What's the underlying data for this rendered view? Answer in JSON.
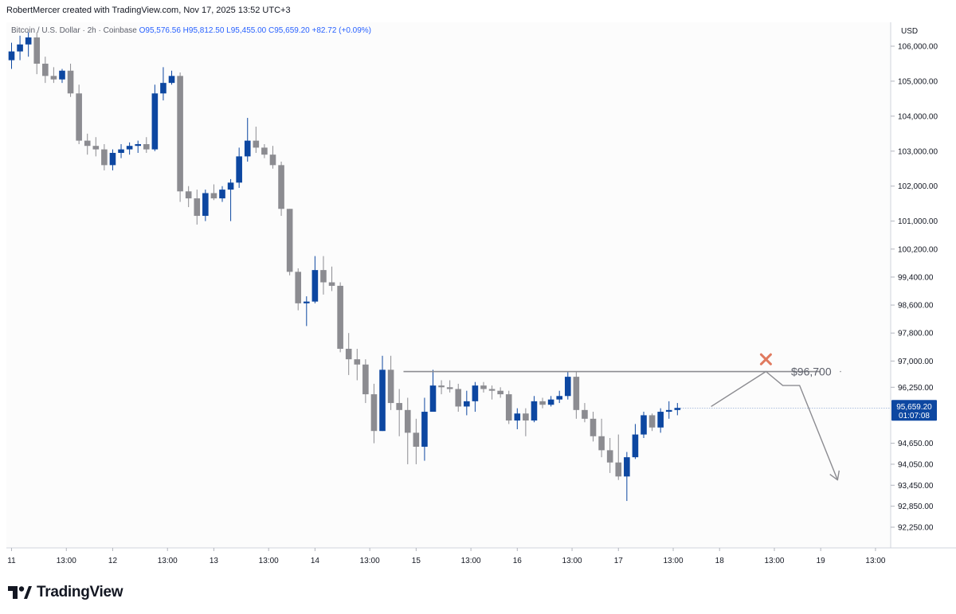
{
  "header": {
    "credit": "RobertMercer created with TradingView.com, Nov 17, 2025 13:52 UTC+3",
    "symbol": "Bitcoin / U.S. Dollar · 2h · Coinbase",
    "open": "O95,576.56",
    "high": "H95,812.50",
    "low": "L95,455.00",
    "close": "C95,659.20",
    "change": "+82.72 (+0.09%)"
  },
  "axis": {
    "currency": "USD"
  },
  "footer": {
    "brand": "TradingView"
  },
  "colors": {
    "up": "#0d47a1",
    "down": "#8c8c91",
    "projection": "#8c8c91",
    "cross": "#e07a5f",
    "price_tag": "#0d47a1"
  },
  "chart_data": {
    "type": "candlestick",
    "title": "Bitcoin / U.S. Dollar · 2h · Coinbase",
    "y_axis": {
      "ticks": [
        {
          "label": "106,000.00",
          "value": 106000
        },
        {
          "label": "105,000.00",
          "value": 105000
        },
        {
          "label": "104,000.00",
          "value": 104000
        },
        {
          "label": "103,000.00",
          "value": 103000
        },
        {
          "label": "102,000.00",
          "value": 102000
        },
        {
          "label": "101,000.00",
          "value": 101000
        },
        {
          "label": "100,200.00",
          "value": 100200
        },
        {
          "label": "99,400.00",
          "value": 99400
        },
        {
          "label": "98,600.00",
          "value": 98600
        },
        {
          "label": "97,800.00",
          "value": 97800
        },
        {
          "label": "97,000.00",
          "value": 97000
        },
        {
          "label": "96,250.00",
          "value": 96250
        },
        {
          "label": "94,650.00",
          "value": 94650
        },
        {
          "label": "94,050.00",
          "value": 94050
        },
        {
          "label": "93,450.00",
          "value": 93450
        },
        {
          "label": "92,850.00",
          "value": 92850
        },
        {
          "label": "92,250.00",
          "value": 92250
        }
      ]
    },
    "x_axis": {
      "ticks": [
        {
          "label": "11",
          "bar": 0
        },
        {
          "label": "13:00",
          "bar": 6.5
        },
        {
          "label": "12",
          "bar": 12
        },
        {
          "label": "13:00",
          "bar": 18.5
        },
        {
          "label": "13",
          "bar": 24
        },
        {
          "label": "13:00",
          "bar": 30.5
        },
        {
          "label": "14",
          "bar": 36
        },
        {
          "label": "13:00",
          "bar": 42.5
        },
        {
          "label": "15",
          "bar": 48
        },
        {
          "label": "13:00",
          "bar": 54.5
        },
        {
          "label": "16",
          "bar": 60
        },
        {
          "label": "13:00",
          "bar": 66.5
        },
        {
          "label": "17",
          "bar": 72
        },
        {
          "label": "13:00",
          "bar": 78.5
        },
        {
          "label": "18",
          "bar": 84
        },
        {
          "label": "13:00",
          "bar": 90.5
        },
        {
          "label": "19",
          "bar": 96
        },
        {
          "label": "13:00",
          "bar": 102.5
        }
      ]
    },
    "candles": [
      {
        "o": 105600,
        "h": 106100,
        "l": 105350,
        "c": 105850
      },
      {
        "o": 105850,
        "h": 106300,
        "l": 105600,
        "c": 106050
      },
      {
        "o": 106050,
        "h": 106400,
        "l": 105700,
        "c": 106250
      },
      {
        "o": 106250,
        "h": 106400,
        "l": 105200,
        "c": 105500
      },
      {
        "o": 105500,
        "h": 105700,
        "l": 104950,
        "c": 105150
      },
      {
        "o": 105150,
        "h": 105400,
        "l": 104950,
        "c": 105050
      },
      {
        "o": 105050,
        "h": 105350,
        "l": 104950,
        "c": 105300
      },
      {
        "o": 105300,
        "h": 105500,
        "l": 104550,
        "c": 104650
      },
      {
        "o": 104650,
        "h": 104900,
        "l": 103200,
        "c": 103300
      },
      {
        "o": 103300,
        "h": 103500,
        "l": 102900,
        "c": 103150
      },
      {
        "o": 103150,
        "h": 103400,
        "l": 102850,
        "c": 103050
      },
      {
        "o": 103050,
        "h": 103200,
        "l": 102450,
        "c": 102600
      },
      {
        "o": 102600,
        "h": 103050,
        "l": 102450,
        "c": 102950
      },
      {
        "o": 102950,
        "h": 103200,
        "l": 102800,
        "c": 103050
      },
      {
        "o": 103050,
        "h": 103250,
        "l": 102900,
        "c": 103150
      },
      {
        "o": 103150,
        "h": 103300,
        "l": 102950,
        "c": 103200
      },
      {
        "o": 103200,
        "h": 103400,
        "l": 102950,
        "c": 103050
      },
      {
        "o": 103050,
        "h": 104900,
        "l": 103000,
        "c": 104650
      },
      {
        "o": 104650,
        "h": 105400,
        "l": 104450,
        "c": 104950
      },
      {
        "o": 104950,
        "h": 105300,
        "l": 104900,
        "c": 105150
      },
      {
        "o": 105150,
        "h": 105250,
        "l": 101550,
        "c": 101850
      },
      {
        "o": 101850,
        "h": 102000,
        "l": 101400,
        "c": 101650
      },
      {
        "o": 101650,
        "h": 101900,
        "l": 100900,
        "c": 101150
      },
      {
        "o": 101150,
        "h": 101900,
        "l": 101000,
        "c": 101800
      },
      {
        "o": 101800,
        "h": 102050,
        "l": 101600,
        "c": 101650
      },
      {
        "o": 101650,
        "h": 102000,
        "l": 101550,
        "c": 101900
      },
      {
        "o": 101900,
        "h": 102200,
        "l": 101000,
        "c": 102100
      },
      {
        "o": 102100,
        "h": 103100,
        "l": 101950,
        "c": 102850
      },
      {
        "o": 102850,
        "h": 103950,
        "l": 102700,
        "c": 103300
      },
      {
        "o": 103300,
        "h": 103700,
        "l": 102950,
        "c": 103100
      },
      {
        "o": 103100,
        "h": 103200,
        "l": 102800,
        "c": 102900
      },
      {
        "o": 102900,
        "h": 103150,
        "l": 102500,
        "c": 102600
      },
      {
        "o": 102600,
        "h": 102700,
        "l": 101150,
        "c": 101350
      },
      {
        "o": 101350,
        "h": 101350,
        "l": 99450,
        "c": 99550
      },
      {
        "o": 99550,
        "h": 99650,
        "l": 98450,
        "c": 98650
      },
      {
        "o": 98650,
        "h": 98850,
        "l": 98000,
        "c": 98700
      },
      {
        "o": 98700,
        "h": 100000,
        "l": 98650,
        "c": 99600
      },
      {
        "o": 99600,
        "h": 100000,
        "l": 98900,
        "c": 99250
      },
      {
        "o": 99250,
        "h": 99700,
        "l": 99000,
        "c": 99150
      },
      {
        "o": 99150,
        "h": 99250,
        "l": 97250,
        "c": 97350
      },
      {
        "o": 97350,
        "h": 97800,
        "l": 96600,
        "c": 97050
      },
      {
        "o": 97050,
        "h": 97350,
        "l": 96450,
        "c": 96900
      },
      {
        "o": 96900,
        "h": 97050,
        "l": 95800,
        "c": 96050
      },
      {
        "o": 96050,
        "h": 96350,
        "l": 94650,
        "c": 95000
      },
      {
        "o": 95000,
        "h": 97150,
        "l": 95000,
        "c": 96750
      },
      {
        "o": 96750,
        "h": 97150,
        "l": 95600,
        "c": 95800
      },
      {
        "o": 95800,
        "h": 96200,
        "l": 94850,
        "c": 95600
      },
      {
        "o": 95600,
        "h": 95950,
        "l": 94050,
        "c": 94950
      },
      {
        "o": 94950,
        "h": 95350,
        "l": 94050,
        "c": 94550
      },
      {
        "o": 94550,
        "h": 95950,
        "l": 94150,
        "c": 95550
      },
      {
        "o": 95550,
        "h": 96750,
        "l": 95550,
        "c": 96300
      },
      {
        "o": 96300,
        "h": 96450,
        "l": 96050,
        "c": 96250
      },
      {
        "o": 96250,
        "h": 96450,
        "l": 96100,
        "c": 96200
      },
      {
        "o": 96200,
        "h": 96350,
        "l": 95550,
        "c": 95700
      },
      {
        "o": 95700,
        "h": 96150,
        "l": 95450,
        "c": 95850
      },
      {
        "o": 95850,
        "h": 96400,
        "l": 95550,
        "c": 96300
      },
      {
        "o": 96300,
        "h": 96400,
        "l": 96100,
        "c": 96200
      },
      {
        "o": 96200,
        "h": 96300,
        "l": 95900,
        "c": 96150
      },
      {
        "o": 96150,
        "h": 96250,
        "l": 95950,
        "c": 96050
      },
      {
        "o": 96050,
        "h": 96150,
        "l": 95200,
        "c": 95300
      },
      {
        "o": 95300,
        "h": 95650,
        "l": 95050,
        "c": 95500
      },
      {
        "o": 95500,
        "h": 95650,
        "l": 94850,
        "c": 95300
      },
      {
        "o": 95300,
        "h": 96000,
        "l": 95250,
        "c": 95850
      },
      {
        "o": 95850,
        "h": 95950,
        "l": 95650,
        "c": 95750
      },
      {
        "o": 95750,
        "h": 96000,
        "l": 95700,
        "c": 95900
      },
      {
        "o": 95900,
        "h": 96150,
        "l": 95800,
        "c": 96000
      },
      {
        "o": 96000,
        "h": 96700,
        "l": 95900,
        "c": 96550
      },
      {
        "o": 96550,
        "h": 96700,
        "l": 95350,
        "c": 95600
      },
      {
        "o": 95600,
        "h": 95800,
        "l": 95250,
        "c": 95350
      },
      {
        "o": 95350,
        "h": 95550,
        "l": 94700,
        "c": 94850
      },
      {
        "o": 94850,
        "h": 95350,
        "l": 94250,
        "c": 94450
      },
      {
        "o": 94450,
        "h": 94800,
        "l": 93800,
        "c": 94100
      },
      {
        "o": 94100,
        "h": 94900,
        "l": 93600,
        "c": 93700
      },
      {
        "o": 93700,
        "h": 94400,
        "l": 93000,
        "c": 94250
      },
      {
        "o": 94250,
        "h": 95200,
        "l": 94200,
        "c": 94900
      },
      {
        "o": 94900,
        "h": 95550,
        "l": 94800,
        "c": 95450
      },
      {
        "o": 95450,
        "h": 95500,
        "l": 95000,
        "c": 95100
      },
      {
        "o": 95100,
        "h": 95650,
        "l": 94950,
        "c": 95550
      },
      {
        "o": 95550,
        "h": 95850,
        "l": 95350,
        "c": 95600
      },
      {
        "o": 95600,
        "h": 95800,
        "l": 95450,
        "c": 95660
      }
    ],
    "last_price": {
      "value": 95659.2,
      "label": "95,659.20",
      "countdown": "01:07:08"
    },
    "resistance": {
      "value": 96700,
      "label": "$96,700",
      "start_bar": 46.5,
      "end_bar": 96
    },
    "projection": [
      {
        "bar": 83,
        "price": 95700
      },
      {
        "bar": 89.5,
        "price": 96700
      },
      {
        "bar": 91.5,
        "price": 96300
      },
      {
        "bar": 93.5,
        "price": 96300
      },
      {
        "bar": 98,
        "price": 93600
      }
    ],
    "rejection_marker": {
      "bar": 89.5,
      "price": 97050
    }
  }
}
